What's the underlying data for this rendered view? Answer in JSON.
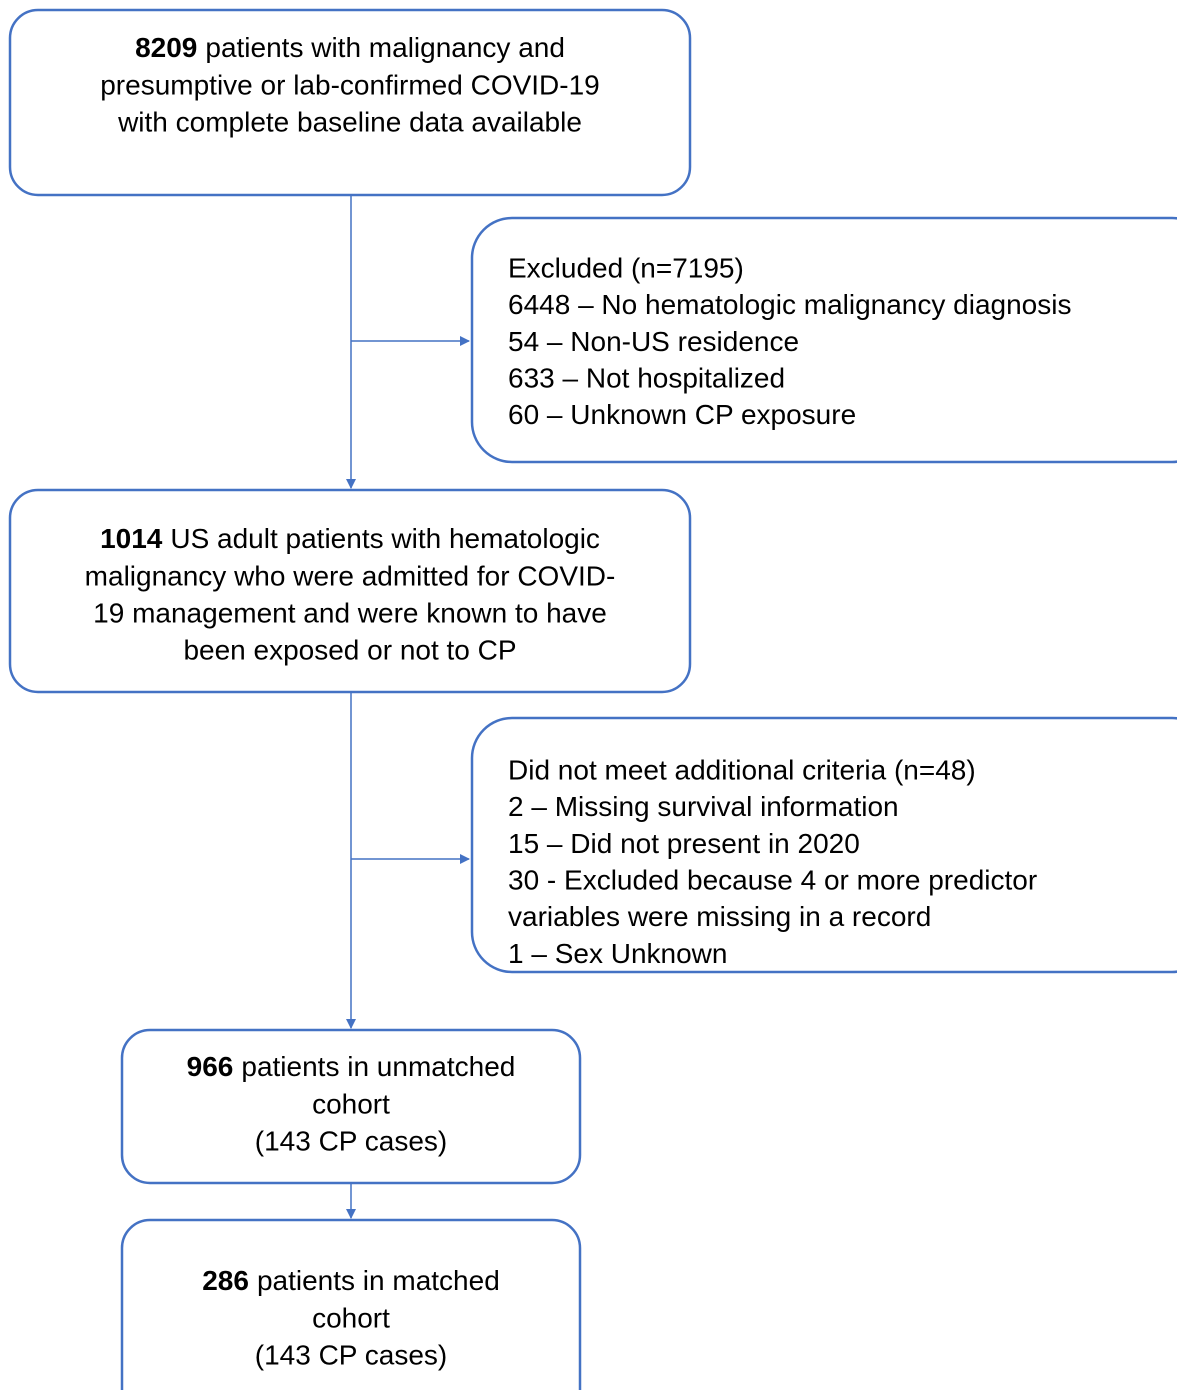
{
  "main_boxes": [
    {
      "count": "8209",
      "lines": [
        "patients with malignancy and",
        "presumptive or lab-confirmed COVID-19",
        "with complete baseline data available"
      ]
    },
    {
      "count": "1014",
      "lines": [
        "US adult patients with hematologic",
        "malignancy who were admitted for COVID-",
        "19 management and were known to have",
        "been exposed or not to CP"
      ]
    },
    {
      "count": "966",
      "lines": [
        "patients in unmatched",
        "cohort",
        "(143 CP cases)"
      ]
    },
    {
      "count": "286",
      "lines": [
        "patients in matched",
        "cohort",
        "(143 CP cases)"
      ]
    }
  ],
  "exclusion_boxes": [
    {
      "title": "Excluded (n=7195)",
      "items": [
        "6448 – No hematologic malignancy diagnosis",
        "54 – Non-US residence",
        "633 – Not hospitalized",
        "60 – Unknown CP exposure"
      ]
    },
    {
      "title": "Did not meet additional criteria (n=48)",
      "items": [
        "2 – Missing survival information",
        "15 – Did not present in 2020",
        "30 - Excluded because 4 or more predictor",
        "variables were missing in a record",
        "1 – Sex Unknown"
      ]
    }
  ]
}
